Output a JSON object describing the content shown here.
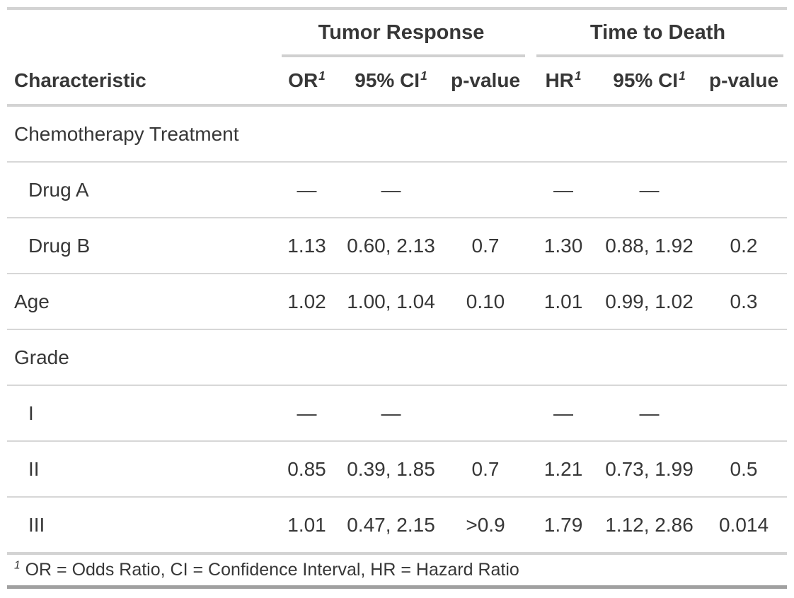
{
  "table": {
    "spanners": [
      {
        "label": "Tumor Response"
      },
      {
        "label": "Time to Death"
      }
    ],
    "columns": {
      "characteristic": "Characteristic",
      "or": "OR",
      "ci": "95% CI",
      "p": "p-value",
      "hr": "HR"
    },
    "footnote": {
      "mark": "1",
      "text": "OR = Odds Ratio, CI = Confidence Interval, HR = Hazard Ratio"
    },
    "rows": [
      {
        "label": "Chemotherapy Treatment",
        "or": "",
        "or_ci": "",
        "or_p": "",
        "hr": "",
        "hr_ci": "",
        "hr_p": ""
      },
      {
        "label": "Drug A",
        "or": "—",
        "or_ci": "—",
        "or_p": "",
        "hr": "—",
        "hr_ci": "—",
        "hr_p": ""
      },
      {
        "label": "Drug B",
        "or": "1.13",
        "or_ci": "0.60, 2.13",
        "or_p": "0.7",
        "hr": "1.30",
        "hr_ci": "0.88, 1.92",
        "hr_p": "0.2"
      },
      {
        "label": "Age",
        "or": "1.02",
        "or_ci": "1.00, 1.04",
        "or_p": "0.10",
        "hr": "1.01",
        "hr_ci": "0.99, 1.02",
        "hr_p": "0.3"
      },
      {
        "label": "Grade",
        "or": "",
        "or_ci": "",
        "or_p": "",
        "hr": "",
        "hr_ci": "",
        "hr_p": ""
      },
      {
        "label": "I",
        "or": "—",
        "or_ci": "—",
        "or_p": "",
        "hr": "—",
        "hr_ci": "—",
        "hr_p": ""
      },
      {
        "label": "II",
        "or": "0.85",
        "or_ci": "0.39, 1.85",
        "or_p": "0.7",
        "hr": "1.21",
        "hr_ci": "0.73, 1.99",
        "hr_p": "0.5"
      },
      {
        "label": "III",
        "or": "1.01",
        "or_ci": "0.47, 2.15",
        "or_p": ">0.9",
        "hr": "1.79",
        "hr_ci": "1.12, 2.86",
        "hr_p": "0.014"
      }
    ],
    "colors": {
      "text": "#373737",
      "rule_light": "#d3d3d3",
      "rule_row": "#d7d7d7",
      "rule_bottom": "#a0a0a0"
    }
  }
}
